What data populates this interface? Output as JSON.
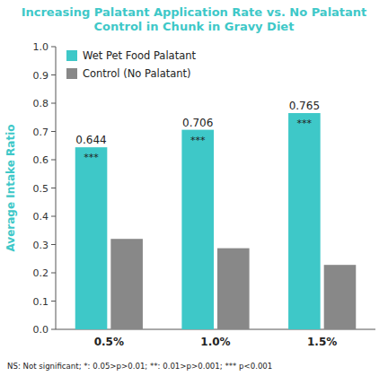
{
  "chart_data": {
    "type": "bar",
    "title": "Increasing Palatant Application Rate vs. No Palatant\nControl in Chunk in Gravy Diet",
    "title_color": "#3ec8c8",
    "ylabel": "Average Intake Ratio",
    "ylabel_color": "#3ec8c8",
    "categories": [
      "0.5%",
      "1.0%",
      "1.5%"
    ],
    "series": [
      {
        "name": "Wet Pet Food Palatant",
        "color": "#3ec8c8",
        "values": [
          0.644,
          0.706,
          0.765
        ],
        "data_labels": true,
        "significance": [
          "***",
          "***",
          "***"
        ]
      },
      {
        "name": "Control (No Palatant)",
        "color": "#888888",
        "values": [
          0.32,
          0.287,
          0.228
        ]
      }
    ],
    "ylim": [
      0,
      1.0
    ],
    "yticks": [
      {
        "value": 0.0,
        "label": "0.0"
      },
      0.1,
      0.2,
      0.3,
      0.4,
      0.5,
      0.6,
      0.7,
      0.8,
      0.9,
      {
        "value": 1.0,
        "label": "1.0"
      }
    ],
    "legend": "upper left",
    "grid": false,
    "footnote": "NS: Not significant; *: 0.05>p>0.01; **: 0.01>p>0.001; *** p<0.001"
  }
}
